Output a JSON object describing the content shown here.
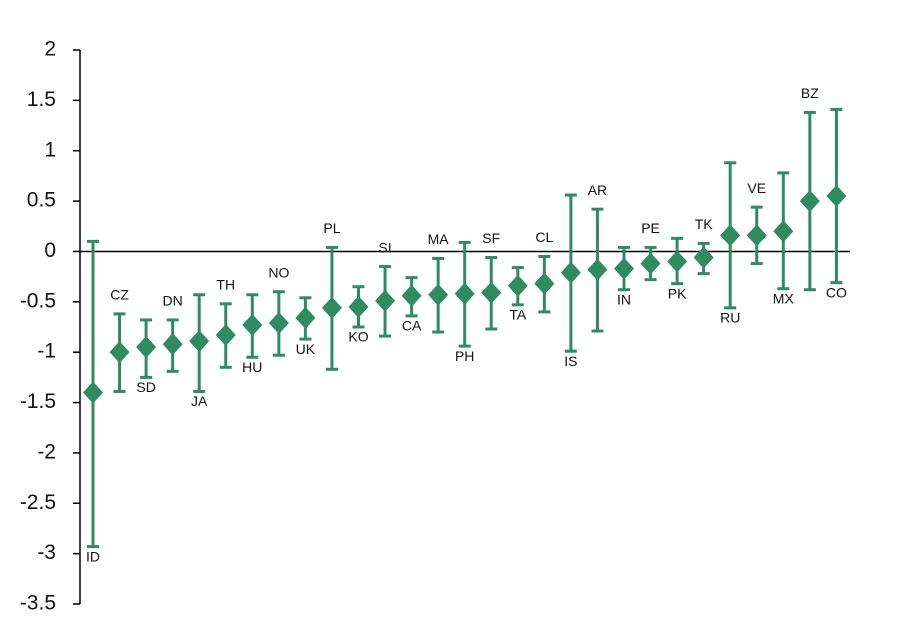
{
  "chart_data": {
    "type": "errorbar",
    "categories": [
      "ID",
      "CZ",
      "SD",
      "DN",
      "JA",
      "TH",
      "HU",
      "NO",
      "UK",
      "PL",
      "KO",
      "SI",
      "CA",
      "MA",
      "PH",
      "SF",
      "TA",
      "CL",
      "IS",
      "AR",
      "IN",
      "PE",
      "PK",
      "TK",
      "RU",
      "VE",
      "MX",
      "BZ",
      "CO"
    ],
    "series": [
      {
        "color": "#2e8b62",
        "values": [
          -1.4,
          -1.0,
          -0.95,
          -0.92,
          -0.89,
          -0.83,
          -0.73,
          -0.71,
          -0.66,
          -0.56,
          -0.55,
          -0.49,
          -0.44,
          -0.43,
          -0.42,
          -0.41,
          -0.34,
          -0.32,
          -0.21,
          -0.18,
          -0.17,
          -0.12,
          -0.1,
          -0.06,
          0.16,
          0.16,
          0.2,
          0.5,
          0.55
        ],
        "lower": [
          -2.93,
          -1.39,
          -1.25,
          -1.19,
          -1.39,
          -1.15,
          -1.05,
          -1.03,
          -0.87,
          -1.17,
          -0.75,
          -0.84,
          -0.64,
          -0.8,
          -0.94,
          -0.77,
          -0.53,
          -0.6,
          -0.99,
          -0.79,
          -0.38,
          -0.28,
          -0.32,
          -0.22,
          -0.56,
          -0.12,
          -0.37,
          -0.38,
          -0.31
        ],
        "upper": [
          0.1,
          -0.62,
          -0.68,
          -0.68,
          -0.43,
          -0.52,
          -0.43,
          -0.4,
          -0.46,
          0.04,
          -0.35,
          -0.15,
          -0.26,
          -0.07,
          0.09,
          -0.06,
          -0.16,
          -0.05,
          0.56,
          0.42,
          0.04,
          0.04,
          0.13,
          0.08,
          0.88,
          0.44,
          0.78,
          1.38,
          1.41
        ]
      }
    ],
    "ylim": [
      -3.5,
      2
    ],
    "yticks": [
      2,
      1.5,
      1,
      0.5,
      0,
      -0.5,
      -1,
      -1.5,
      -2,
      -2.5,
      -3,
      -3.5
    ]
  }
}
